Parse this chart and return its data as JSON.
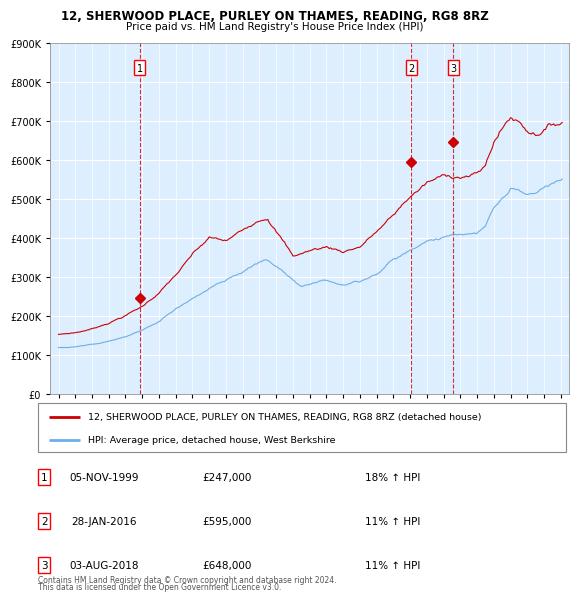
{
  "title": "12, SHERWOOD PLACE, PURLEY ON THAMES, READING, RG8 8RZ",
  "subtitle": "Price paid vs. HM Land Registry's House Price Index (HPI)",
  "legend_line1": "12, SHERWOOD PLACE, PURLEY ON THAMES, READING, RG8 8RZ (detached house)",
  "legend_line2": "HPI: Average price, detached house, West Berkshire",
  "footer1": "Contains HM Land Registry data © Crown copyright and database right 2024.",
  "footer2": "This data is licensed under the Open Government Licence v3.0.",
  "table_rows": [
    {
      "num": "1",
      "date": "05-NOV-1999",
      "price": "£247,000",
      "change": "18% ↑ HPI"
    },
    {
      "num": "2",
      "date": "28-JAN-2016",
      "price": "£595,000",
      "change": "11% ↑ HPI"
    },
    {
      "num": "3",
      "date": "03-AUG-2018",
      "price": "£648,000",
      "change": "11% ↑ HPI"
    }
  ],
  "sale_markers": [
    {
      "year": 1999.84,
      "value": 247000,
      "label": "1"
    },
    {
      "year": 2016.07,
      "value": 595000,
      "label": "2"
    },
    {
      "year": 2018.58,
      "value": 648000,
      "label": "3"
    }
  ],
  "hpi_color": "#6daee8",
  "price_color": "#cc0000",
  "chart_bg": "#ddeeff",
  "ylim": [
    0,
    900000
  ],
  "yticks": [
    0,
    100000,
    200000,
    300000,
    400000,
    500000,
    600000,
    700000,
    800000,
    900000
  ],
  "xlim_start": 1994.5,
  "xlim_end": 2025.5,
  "xticks": [
    1995,
    1996,
    1997,
    1998,
    1999,
    2000,
    2001,
    2002,
    2003,
    2004,
    2005,
    2006,
    2007,
    2008,
    2009,
    2010,
    2011,
    2012,
    2013,
    2014,
    2015,
    2016,
    2017,
    2018,
    2019,
    2020,
    2021,
    2022,
    2023,
    2024,
    2025
  ]
}
